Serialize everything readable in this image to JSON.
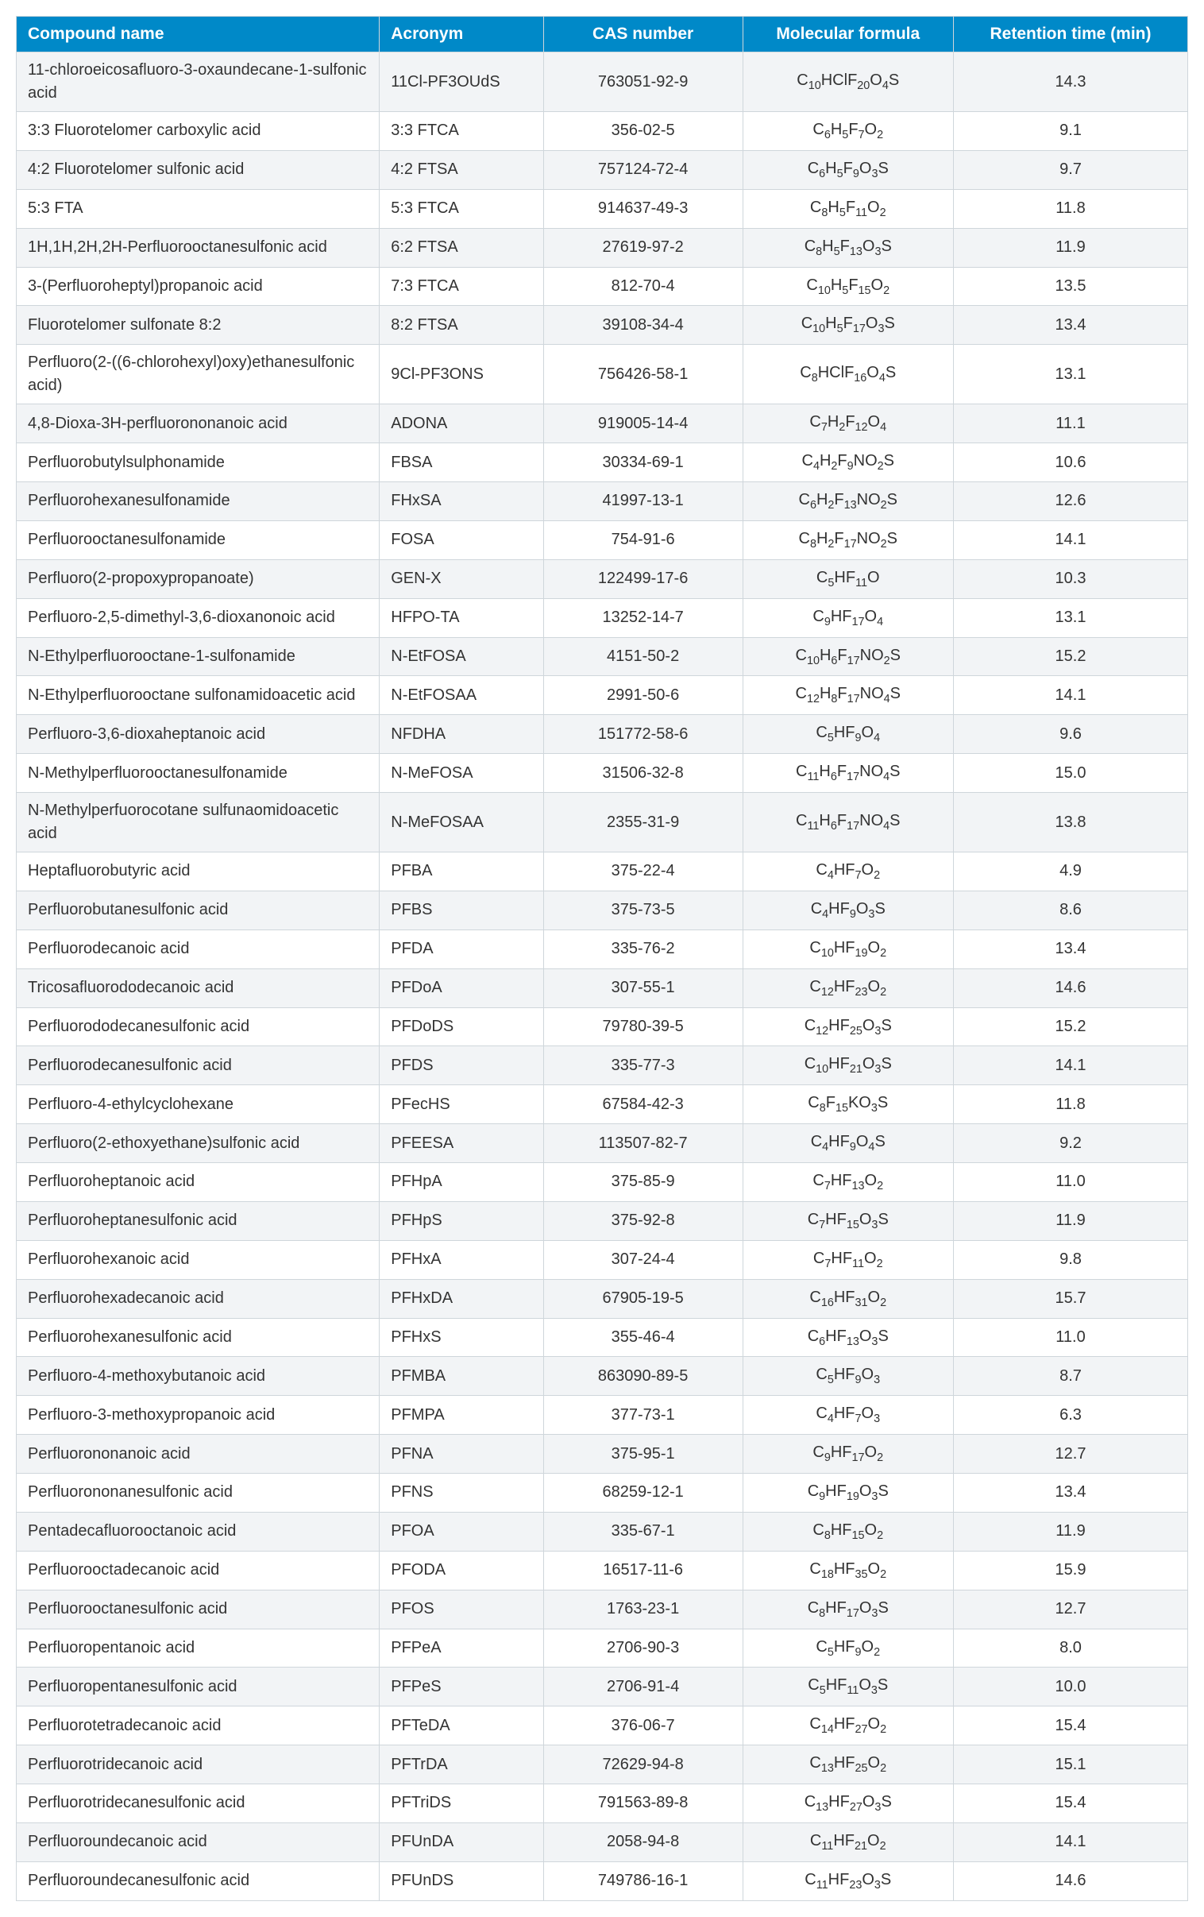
{
  "table": {
    "columns": [
      {
        "key": "name",
        "label": "Compound name",
        "align": "left"
      },
      {
        "key": "acronym",
        "label": "Acronym",
        "align": "left"
      },
      {
        "key": "cas",
        "label": "CAS number",
        "align": "center"
      },
      {
        "key": "formula",
        "label": "Molecular formula",
        "align": "center"
      },
      {
        "key": "rt",
        "label": "Retention time (min)",
        "align": "center"
      }
    ],
    "header_bg": "#0089c8",
    "header_color": "#ffffff",
    "row_alt_bg": "#f2f4f6",
    "row_bg": "#ffffff",
    "border_color": "#cfd6db",
    "font_size_pt": 15,
    "rows": [
      {
        "name": "11-chloroeicosafluoro-3-oxaundecane-1-sulfonic acid",
        "acronym": "11Cl-PF3OUdS",
        "cas": "763051-92-9",
        "formula": "C10HClF20O4S",
        "rt": "14.3"
      },
      {
        "name": "3:3 Fluorotelomer carboxylic acid",
        "acronym": "3:3 FTCA",
        "cas": "356-02-5",
        "formula": "C6H5F7O2",
        "rt": "9.1"
      },
      {
        "name": "4:2 Fluorotelomer sulfonic acid",
        "acronym": "4:2 FTSA",
        "cas": "757124-72-4",
        "formula": "C6H5F9O3S",
        "rt": "9.7"
      },
      {
        "name": "5:3 FTA",
        "acronym": "5:3 FTCA",
        "cas": "914637-49-3",
        "formula": "C8H5F11O2",
        "rt": "11.8"
      },
      {
        "name": "1H,1H,2H,2H-Perfluorooctanesulfonic acid",
        "acronym": "6:2 FTSA",
        "cas": "27619-97-2",
        "formula": "C8H5F13O3S",
        "rt": "11.9"
      },
      {
        "name": "3-(Perfluoroheptyl)propanoic acid",
        "acronym": "7:3 FTCA",
        "cas": "812-70-4",
        "formula": "C10H5F15O2",
        "rt": "13.5"
      },
      {
        "name": "Fluorotelomer sulfonate 8:2",
        "acronym": "8:2 FTSA",
        "cas": "39108-34-4",
        "formula": "C10H5F17O3S",
        "rt": "13.4"
      },
      {
        "name": "Perfluoro(2-((6-chlorohexyl)oxy)ethanesulfonic acid)",
        "acronym": "9Cl-PF3ONS",
        "cas": "756426-58-1",
        "formula": "C8HClF16O4S",
        "rt": "13.1"
      },
      {
        "name": "4,8-Dioxa-3H-perfluorononanoic acid",
        "acronym": "ADONA",
        "cas": "919005-14-4",
        "formula": "C7H2F12O4",
        "rt": "11.1"
      },
      {
        "name": "Perfluorobutylsulphonamide",
        "acronym": "FBSA",
        "cas": "30334-69-1",
        "formula": "C4H2F9NO2S",
        "rt": "10.6"
      },
      {
        "name": "Perfluorohexanesulfonamide",
        "acronym": "FHxSA",
        "cas": "41997-13-1",
        "formula": "C6H2F13NO2S",
        "rt": "12.6"
      },
      {
        "name": "Perfluorooctanesulfonamide",
        "acronym": "FOSA",
        "cas": "754-91-6",
        "formula": "C8H2F17NO2S",
        "rt": "14.1"
      },
      {
        "name": "Perfluoro(2-propoxypropanoate)",
        "acronym": "GEN-X",
        "cas": "122499-17-6",
        "formula": "C5HF11O",
        "rt": "10.3"
      },
      {
        "name": "Perfluoro-2,5-dimethyl-3,6-dioxanonoic acid",
        "acronym": "HFPO-TA",
        "cas": "13252-14-7",
        "formula": "C9HF17O4",
        "rt": "13.1"
      },
      {
        "name": "N-Ethylperfluorooctane-1-sulfonamide",
        "acronym": "N-EtFOSA",
        "cas": "4151-50-2",
        "formula": "C10H6F17NO2S",
        "rt": "15.2"
      },
      {
        "name": "N-Ethylperfluorooctane sulfonamidoacetic acid",
        "acronym": "N-EtFOSAA",
        "cas": "2991-50-6",
        "formula": "C12H8F17NO4S",
        "rt": "14.1"
      },
      {
        "name": "Perfluoro-3,6-dioxaheptanoic acid",
        "acronym": "NFDHA",
        "cas": "151772-58-6",
        "formula": "C5HF9O4",
        "rt": "9.6"
      },
      {
        "name": "N-Methylperfluorooctanesulfonamide",
        "acronym": "N-MeFOSA",
        "cas": "31506-32-8",
        "formula": "C11H6F17NO4S",
        "rt": "15.0"
      },
      {
        "name": "N-Methylperfuorocotane sulfunaomidoacetic acid",
        "acronym": "N-MeFOSAA",
        "cas": "2355-31-9",
        "formula": "C11H6F17NO4S",
        "rt": "13.8"
      },
      {
        "name": "Heptafluorobutyric acid",
        "acronym": "PFBA",
        "cas": "375-22-4",
        "formula": "C4HF7O2",
        "rt": "4.9"
      },
      {
        "name": "Perfluorobutanesulfonic acid",
        "acronym": "PFBS",
        "cas": "375-73-5",
        "formula": "C4HF9O3S",
        "rt": "8.6"
      },
      {
        "name": "Perfluorodecanoic acid",
        "acronym": "PFDA",
        "cas": "335-76-2",
        "formula": "C10HF19O2",
        "rt": "13.4"
      },
      {
        "name": "Tricosafluorododecanoic acid",
        "acronym": "PFDoA",
        "cas": "307-55-1",
        "formula": "C12HF23O2",
        "rt": "14.6"
      },
      {
        "name": "Perfluorododecanesulfonic acid",
        "acronym": "PFDoDS",
        "cas": "79780-39-5",
        "formula": "C12HF25O3S",
        "rt": "15.2"
      },
      {
        "name": "Perfluorodecanesulfonic acid",
        "acronym": "PFDS",
        "cas": "335-77-3",
        "formula": "C10HF21O3S",
        "rt": "14.1"
      },
      {
        "name": "Perfluoro-4-ethylcyclohexane",
        "acronym": "PFecHS",
        "cas": "67584-42-3",
        "formula": "C8F15KO3S",
        "rt": "11.8"
      },
      {
        "name": "Perfluoro(2-ethoxyethane)sulfonic acid",
        "acronym": "PFEESA",
        "cas": "113507-82-7",
        "formula": "C4HF9O4S",
        "rt": "9.2"
      },
      {
        "name": "Perfluoroheptanoic acid",
        "acronym": "PFHpA",
        "cas": "375-85-9",
        "formula": "C7HF13O2",
        "rt": "11.0"
      },
      {
        "name": "Perfluoroheptanesulfonic acid",
        "acronym": "PFHpS",
        "cas": "375-92-8",
        "formula": "C7HF15O3S",
        "rt": "11.9"
      },
      {
        "name": "Perfluorohexanoic acid",
        "acronym": "PFHxA",
        "cas": "307-24-4",
        "formula": "C7HF11O2",
        "rt": "9.8"
      },
      {
        "name": "Perfluorohexadecanoic acid",
        "acronym": "PFHxDA",
        "cas": "67905-19-5",
        "formula": "C16HF31O2",
        "rt": "15.7"
      },
      {
        "name": "Perfluorohexanesulfonic acid",
        "acronym": "PFHxS",
        "cas": "355-46-4",
        "formula": "C6HF13O3S",
        "rt": "11.0"
      },
      {
        "name": "Perfluoro-4-methoxybutanoic acid",
        "acronym": "PFMBA",
        "cas": "863090-89-5",
        "formula": "C5HF9O3",
        "rt": "8.7"
      },
      {
        "name": "Perfluoro-3-methoxypropanoic acid",
        "acronym": "PFMPA",
        "cas": "377-73-1",
        "formula": "C4HF7O3",
        "rt": "6.3"
      },
      {
        "name": "Perfluorononanoic acid",
        "acronym": "PFNA",
        "cas": "375-95-1",
        "formula": "C9HF17O2",
        "rt": "12.7"
      },
      {
        "name": "Perfluorononanesulfonic acid",
        "acronym": "PFNS",
        "cas": "68259-12-1",
        "formula": "C9HF19O3S",
        "rt": "13.4"
      },
      {
        "name": "Pentadecafluorooctanoic acid",
        "acronym": "PFOA",
        "cas": "335-67-1",
        "formula": "C8HF15O2",
        "rt": "11.9"
      },
      {
        "name": "Perfluorooctadecanoic acid",
        "acronym": "PFODA",
        "cas": "16517-11-6",
        "formula": "C18HF35O2",
        "rt": "15.9"
      },
      {
        "name": "Perfluorooctanesulfonic acid",
        "acronym": "PFOS",
        "cas": "1763-23-1",
        "formula": "C8HF17O3S",
        "rt": "12.7"
      },
      {
        "name": "Perfluoropentanoic acid",
        "acronym": "PFPeA",
        "cas": "2706-90-3",
        "formula": "C5HF9O2",
        "rt": "8.0"
      },
      {
        "name": "Perfluoropentanesulfonic acid",
        "acronym": "PFPeS",
        "cas": "2706-91-4",
        "formula": "C5HF11O3S",
        "rt": "10.0"
      },
      {
        "name": "Perfluorotetradecanoic acid",
        "acronym": "PFTeDA",
        "cas": "376-06-7",
        "formula": "C14HF27O2",
        "rt": "15.4"
      },
      {
        "name": "Perfluorotridecanoic acid",
        "acronym": "PFTrDA",
        "cas": "72629-94-8",
        "formula": "C13HF25O2",
        "rt": "15.1"
      },
      {
        "name": "Perfluorotridecanesulfonic acid",
        "acronym": "PFTriDS",
        "cas": "791563-89-8",
        "formula": "C13HF27O3S",
        "rt": "15.4"
      },
      {
        "name": "Perfluoroundecanoic acid",
        "acronym": "PFUnDA",
        "cas": "2058-94-8",
        "formula": "C11HF21O2",
        "rt": "14.1"
      },
      {
        "name": "Perfluoroundecanesulfonic acid",
        "acronym": "PFUnDS",
        "cas": "749786-16-1",
        "formula": "C11HF23O3S",
        "rt": "14.6"
      }
    ]
  }
}
